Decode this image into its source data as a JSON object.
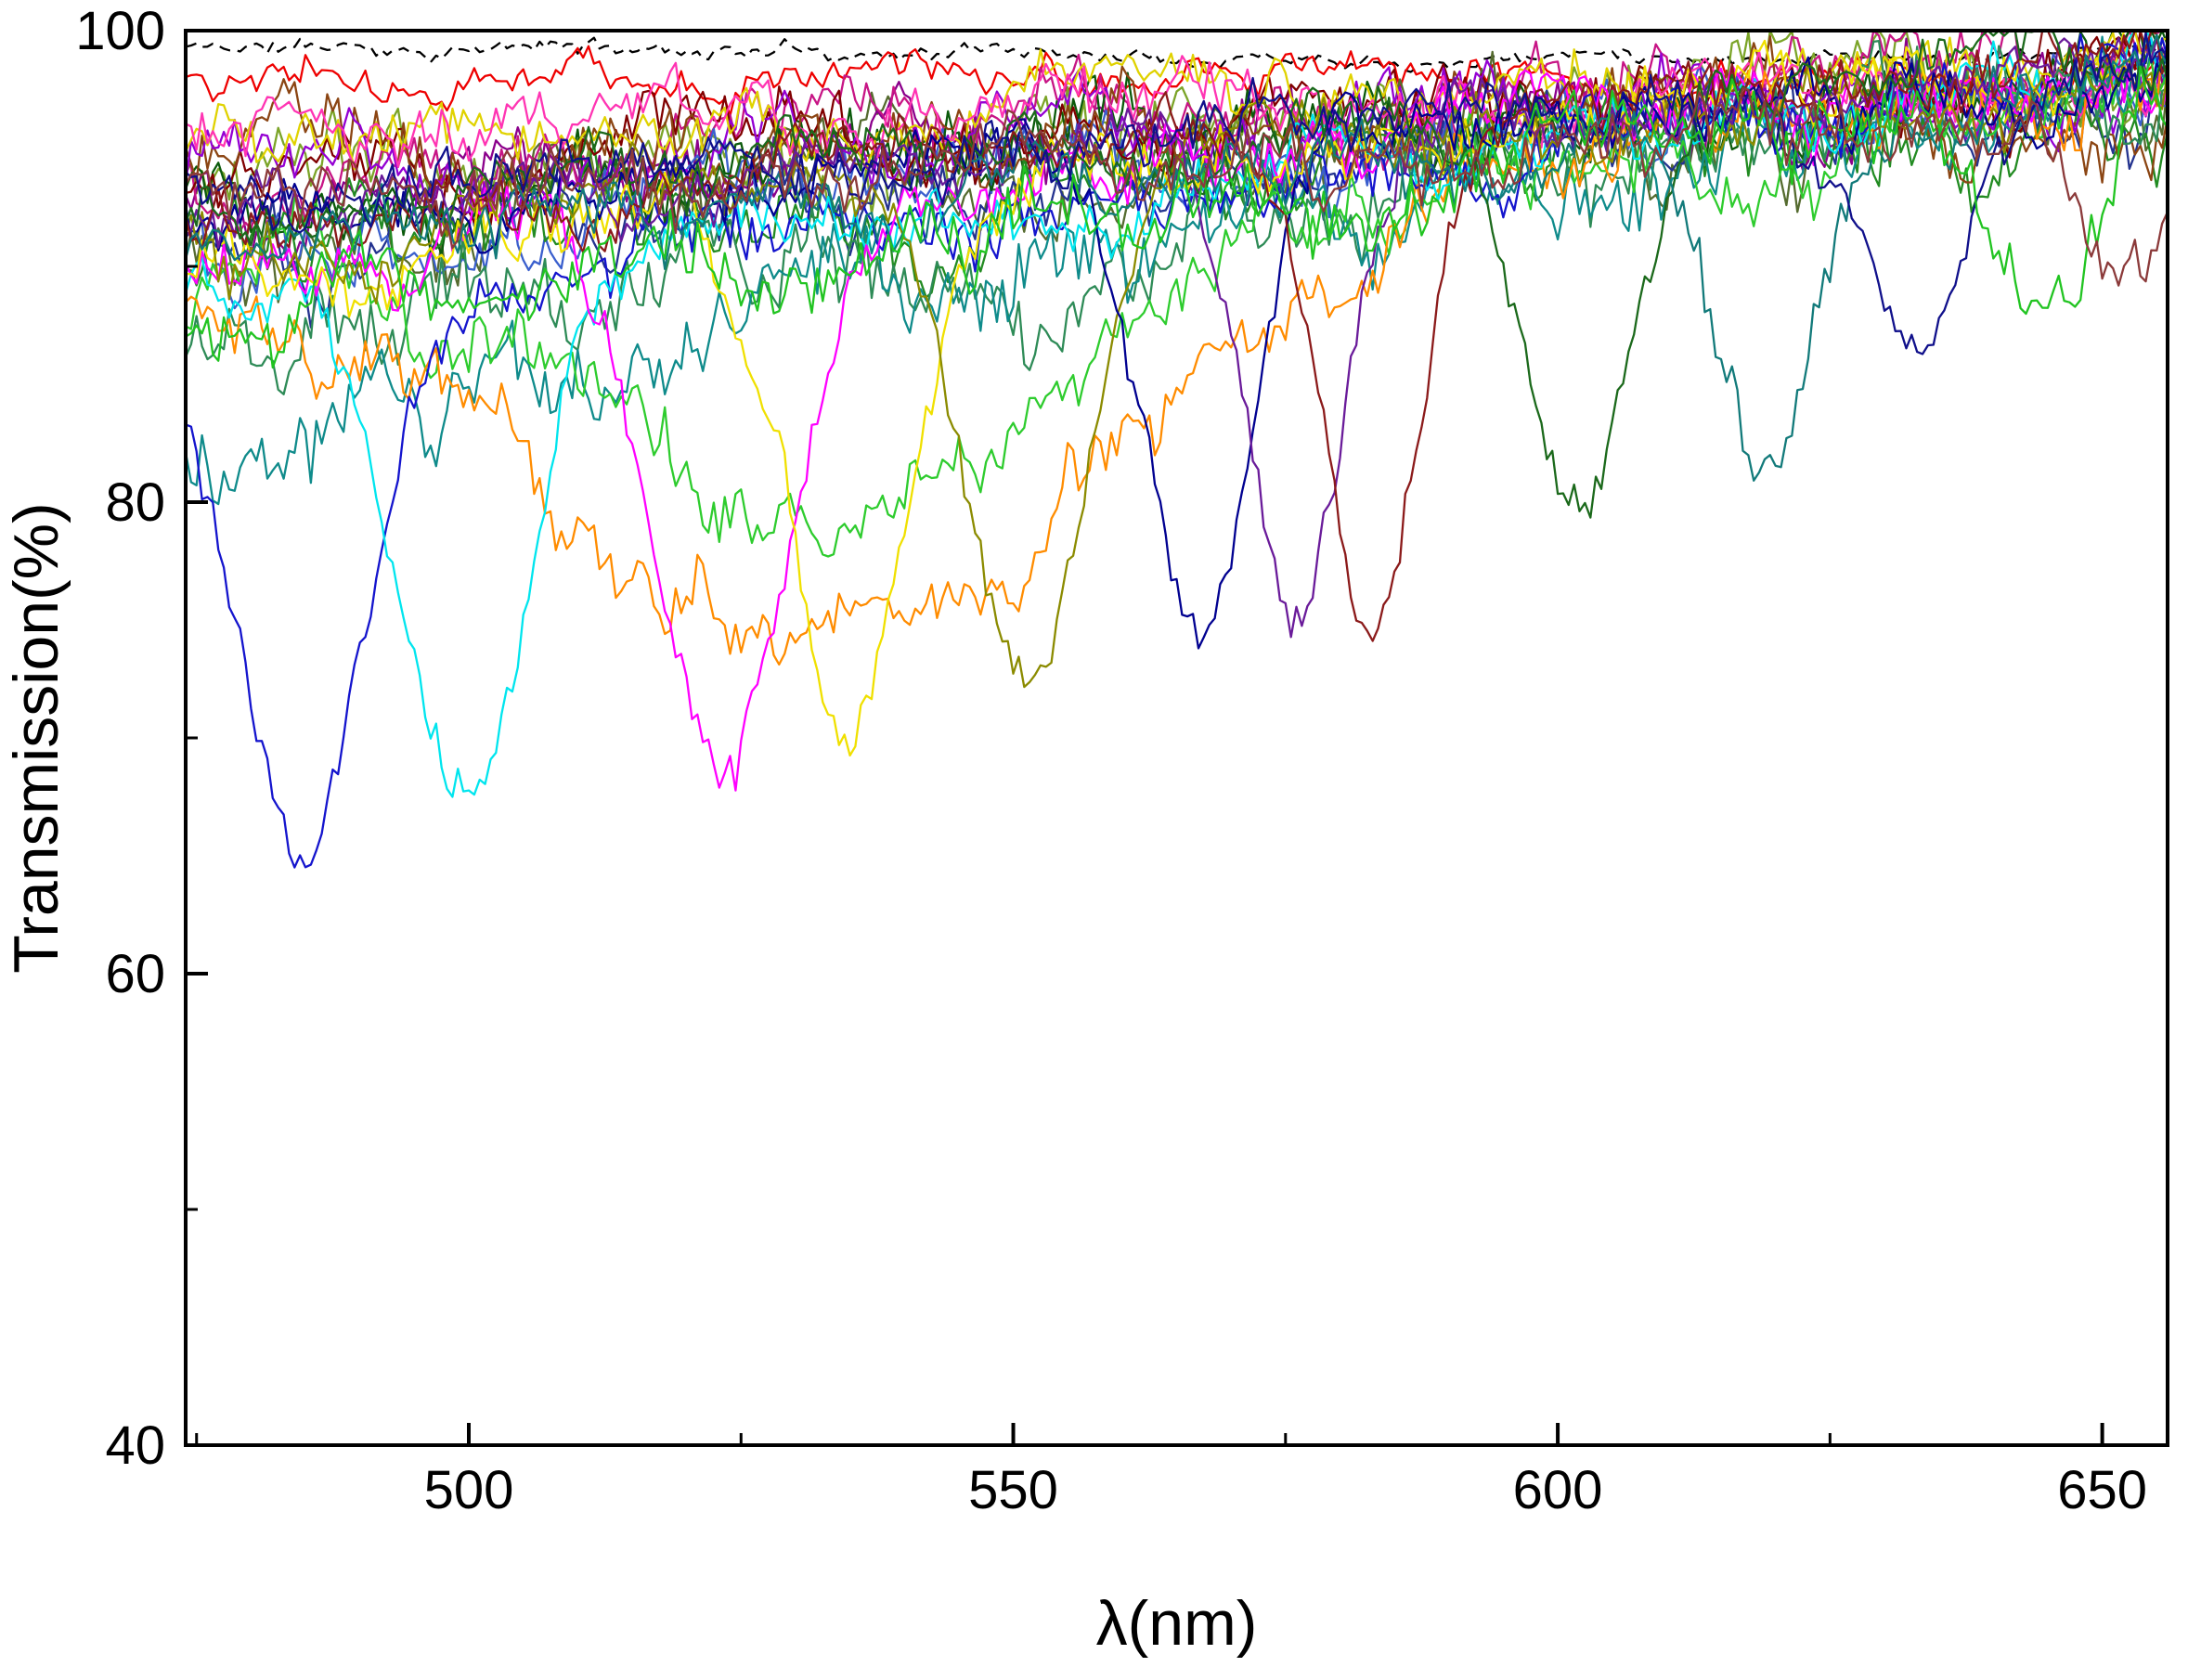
{
  "chart_data": {
    "type": "line",
    "title": "",
    "xlabel": "λ(nm)",
    "ylabel": "Transmission(%)",
    "xlim": [
      474,
      656
    ],
    "ylim": [
      40,
      100
    ],
    "xticks": [
      500,
      550,
      600,
      650
    ],
    "yticks": [
      40,
      60,
      80,
      100
    ],
    "x_minor_ticks": [
      475,
      525,
      575,
      625
    ],
    "y_minor_ticks": [
      50,
      70,
      90
    ],
    "grid": false,
    "legend": "none",
    "background_color": "#ffffff",
    "axis_color": "#000000",
    "sample_step_nm": 0.5,
    "description": "Overlaid noisy optical transmission spectra; many traces cluster near 90-100% with a set of narrow resonance dips whose minimum transmission decreases toward shorter wavelengths.",
    "series": [
      {
        "name": "trace-black-dashed",
        "color": "#000000",
        "base_start": 99.3,
        "base_end": 99.1,
        "noise": 0.4,
        "dash": "12 8"
      },
      {
        "name": "trace-red",
        "color": "#EE0000",
        "base_start": 98.0,
        "base_end": 98.3,
        "noise": 1.0
      },
      {
        "name": "trace-darkolive",
        "color": "#556B2F",
        "base_start": 92.0,
        "base_end": 97.5,
        "noise": 2.2
      },
      {
        "name": "trace-yellowgreen",
        "color": "#7BA428",
        "base_start": 93.0,
        "base_end": 98.0,
        "noise": 2.0
      },
      {
        "name": "trace-darkmagenta",
        "color": "#8B008B",
        "base_start": 92.5,
        "base_end": 98.0,
        "noise": 2.0
      },
      {
        "name": "trace-violetred",
        "color": "#C71585",
        "base_start": 94.0,
        "base_end": 98.5,
        "noise": 1.8
      },
      {
        "name": "trace-navy",
        "color": "#24338F",
        "base_start": 90.5,
        "base_end": 97.5,
        "noise": 2.2
      },
      {
        "name": "trace-blue",
        "color": "#3A5FCD",
        "base_start": 91.5,
        "base_end": 98.0,
        "noise": 2.0
      },
      {
        "name": "trace-darkgreen",
        "color": "#0B5A0B",
        "base_start": 93.0,
        "base_end": 98.0,
        "noise": 2.0
      },
      {
        "name": "trace-forest",
        "color": "#228B22",
        "base_start": 91.0,
        "base_end": 97.5,
        "noise": 2.2
      },
      {
        "name": "trace-maroon",
        "color": "#800000",
        "base_start": 94.0,
        "base_end": 98.0,
        "noise": 1.8
      },
      {
        "name": "trace-sienna",
        "color": "#8B4513",
        "base_start": 95.0,
        "base_end": 97.0,
        "noise": 1.9
      },
      {
        "name": "trace-purple",
        "color": "#9400D3",
        "base_start": 93.5,
        "base_end": 98.5,
        "noise": 1.8
      },
      {
        "name": "trace-yellow",
        "color": "#E0D200",
        "base_start": 95.0,
        "base_end": 98.8,
        "noise": 1.6
      },
      {
        "name": "trace-pink",
        "color": "#FF34B3",
        "base_start": 95.5,
        "base_end": 98.5,
        "noise": 1.6
      },
      {
        "name": "trace-seagreen",
        "color": "#2E8B57",
        "base_start": 86.0,
        "base_end": 97.5,
        "noise": 2.4
      },
      {
        "name": "broad-darkcyan",
        "color": "#0F8B8B",
        "base_start": 85.0,
        "base_end": 97.0,
        "noise": 2.3,
        "dip": {
          "center": 493,
          "min": 82.5,
          "width": 16
        }
      },
      {
        "name": "broad-green",
        "color": "#2ECC2E",
        "base_start": 87.5,
        "base_end": 97.0,
        "noise": 2.1,
        "dip": {
          "center": 536,
          "min": 78.0,
          "width": 18
        }
      },
      {
        "name": "broad-orange",
        "color": "#FF8C00",
        "base_start": 88.5,
        "base_end": 97.5,
        "noise": 1.9,
        "dip": {
          "center": 535,
          "min": 73.5,
          "width": 22
        }
      },
      {
        "name": "dip-485",
        "color": "#1414CD",
        "base_start": 88.0,
        "base_end": 98.5,
        "noise": 1.7,
        "dip": {
          "center": 485.0,
          "min": 66.0,
          "width": 6
        }
      },
      {
        "name": "dip-500",
        "color": "#00E5EE",
        "base_start": 89.0,
        "base_end": 98.5,
        "noise": 1.7,
        "dip": {
          "center": 499.5,
          "min": 66.5,
          "width": 6
        }
      },
      {
        "name": "dip-523",
        "color": "#FF00FF",
        "base_start": 90.0,
        "base_end": 98.5,
        "noise": 1.7,
        "dip": {
          "center": 523.5,
          "min": 69.5,
          "width": 6
        }
      },
      {
        "name": "dip-535",
        "color": "#F0E000",
        "base_start": 91.0,
        "base_end": 98.5,
        "noise": 1.7,
        "dip": {
          "center": 535.0,
          "min": 71.0,
          "width": 5.5
        }
      },
      {
        "name": "dip-551",
        "color": "#8B8B00",
        "base_start": 91.0,
        "base_end": 98.5,
        "noise": 1.7,
        "dip": {
          "center": 551.0,
          "min": 72.5,
          "width": 5.5
        }
      },
      {
        "name": "dip-567",
        "color": "#000090",
        "base_start": 92.0,
        "base_end": 98.5,
        "noise": 1.6,
        "dip": {
          "center": 567.0,
          "min": 73.5,
          "width": 5
        }
      },
      {
        "name": "dip-576",
        "color": "#6A1B9A",
        "base_start": 92.0,
        "base_end": 98.5,
        "noise": 1.6,
        "dip": {
          "center": 576.0,
          "min": 74.0,
          "width": 4.5
        }
      },
      {
        "name": "dip-583",
        "color": "#8B1A1A",
        "base_start": 92.5,
        "base_end": 98.5,
        "noise": 1.6,
        "dip": {
          "center": 583.0,
          "min": 75.0,
          "width": 4.5
        }
      },
      {
        "name": "dip-602",
        "color": "#1B691B",
        "base_start": 92.5,
        "base_end": 98.0,
        "noise": 1.7,
        "dip": {
          "center": 602.0,
          "min": 79.5,
          "width": 5
        }
      },
      {
        "name": "dip-619",
        "color": "#127A7A",
        "base_start": 90.0,
        "base_end": 98.0,
        "noise": 1.8,
        "dip": {
          "center": 619.0,
          "min": 80.5,
          "width": 5
        }
      },
      {
        "name": "dip-633",
        "color": "#10108B",
        "base_start": 93.0,
        "base_end": 98.5,
        "noise": 1.6,
        "dip": {
          "center": 633.0,
          "min": 86.0,
          "width": 5
        }
      },
      {
        "name": "dip-645",
        "color": "#21C421",
        "base_start": 88.0,
        "base_end": 97.5,
        "noise": 2.1,
        "dip": {
          "center": 645.0,
          "min": 88.0,
          "width": 5
        }
      },
      {
        "name": "dip-651",
        "color": "#8B3A3A",
        "base_start": 93.5,
        "base_end": 96.5,
        "noise": 1.8,
        "dip": {
          "center": 651.0,
          "min": 90.0,
          "width": 4.5
        }
      }
    ]
  }
}
